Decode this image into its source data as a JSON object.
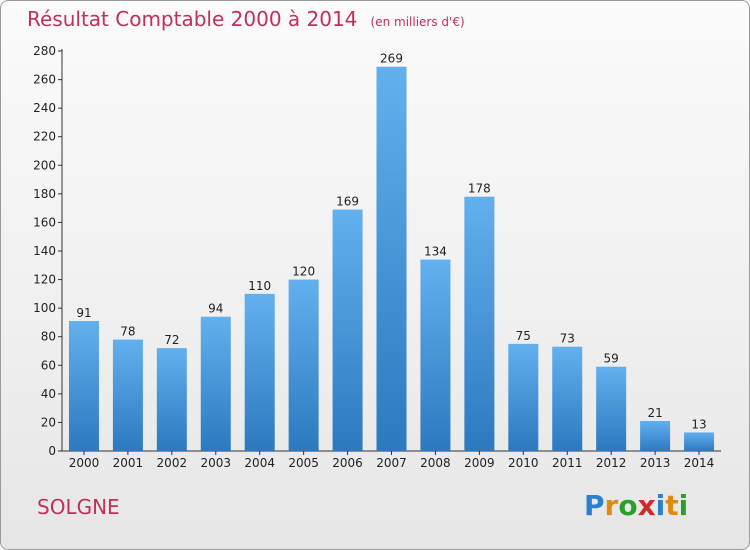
{
  "title": "Résultat Comptable 2000 à 2014",
  "subtitle": "(en milliers d'€)",
  "commune": "SOLGNE",
  "logo": {
    "text": "Proxiti",
    "letters": [
      "P",
      "r",
      "o",
      "x",
      "i",
      "t",
      "i"
    ],
    "colors": [
      "#2a7fd0",
      "#e08a10",
      "#2aa02a",
      "#d02a2a",
      "#2a7fd0",
      "#e08a10",
      "#2aa02a"
    ]
  },
  "colors": {
    "bar": "#3f8fd8",
    "bar_light": "#62b0ee",
    "bar_dark": "#2c79c0",
    "title": "#c0305a"
  },
  "chart_data": {
    "type": "bar",
    "categories": [
      "2000",
      "2001",
      "2002",
      "2003",
      "2004",
      "2005",
      "2006",
      "2007",
      "2008",
      "2009",
      "2010",
      "2011",
      "2012",
      "2013",
      "2014"
    ],
    "values": [
      91,
      78,
      72,
      94,
      110,
      120,
      169,
      269,
      134,
      178,
      75,
      73,
      59,
      21,
      13
    ],
    "title": "Résultat Comptable 2000 à 2014",
    "subtitle": "(en milliers d'€)",
    "xlabel": "",
    "ylabel": "",
    "ylim": [
      0,
      280
    ],
    "yticks": [
      0,
      20,
      40,
      60,
      80,
      100,
      120,
      140,
      160,
      180,
      200,
      220,
      240,
      260,
      280
    ],
    "grid": false,
    "legend": "none"
  }
}
